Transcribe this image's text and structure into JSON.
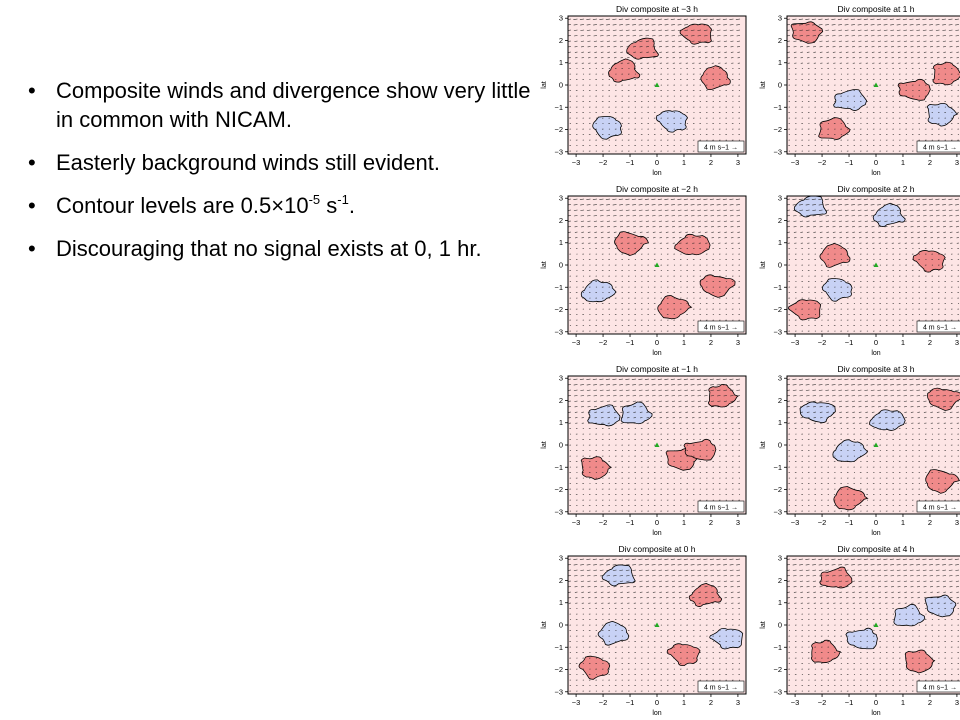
{
  "bullets": [
    {
      "text": "Composite winds and divergence show very little in common with NICAM."
    },
    {
      "text": "Easterly background winds still evident."
    },
    {
      "pre": "Contour levels are 0.5×10",
      "sup1": "-5",
      "mid": " s",
      "sup2": "-1",
      "post": "."
    },
    {
      "text": "Discouraging that no signal exists at 0, 1 hr."
    }
  ],
  "bullet_glyph": "•",
  "colors": {
    "positive_fill": "#f08a8a",
    "negative_fill": "#c8d2f5",
    "background": "#fde5e5",
    "marker": "#22aa22"
  },
  "chart_data": [
    {
      "type": "heatmap",
      "title": "Div composite at −3 h",
      "xlabel": "lon",
      "ylabel": "lat",
      "xticks": [
        "−3",
        "−2",
        "−1",
        "0",
        "1",
        "2",
        "3"
      ],
      "yticks": [
        "3",
        "2",
        "1",
        "0",
        "−1",
        "−2",
        "−3"
      ],
      "xlim": [
        -3.3,
        3.3
      ],
      "ylim": [
        -3.1,
        3.1
      ],
      "vector_key": "4 m s−1 →",
      "blobs": [
        {
          "x": -0.5,
          "y": 1.6,
          "s": "pos"
        },
        {
          "x": -1.2,
          "y": 0.6,
          "s": "pos"
        },
        {
          "x": 2.2,
          "y": 0.3,
          "s": "pos"
        },
        {
          "x": -1.8,
          "y": -1.9,
          "s": "neg"
        },
        {
          "x": 0.6,
          "y": -1.6,
          "s": "neg"
        },
        {
          "x": 1.5,
          "y": 2.3,
          "s": "pos"
        }
      ]
    },
    {
      "type": "heatmap",
      "title": "Div composite at 1 h",
      "xlabel": "lon",
      "ylabel": "lat",
      "xticks": [
        "−3",
        "−2",
        "−1",
        "0",
        "1",
        "2",
        "3"
      ],
      "yticks": [
        "3",
        "2",
        "1",
        "0",
        "−1",
        "−2",
        "−3"
      ],
      "xlim": [
        -3.3,
        3.3
      ],
      "ylim": [
        -3.1,
        3.1
      ],
      "vector_key": "4 m s−1 →",
      "blobs": [
        {
          "x": -1.0,
          "y": -0.7,
          "s": "neg"
        },
        {
          "x": -1.6,
          "y": -2.0,
          "s": "pos"
        },
        {
          "x": 2.6,
          "y": 0.5,
          "s": "pos"
        },
        {
          "x": 2.4,
          "y": -1.3,
          "s": "neg"
        },
        {
          "x": -2.6,
          "y": 2.4,
          "s": "pos"
        },
        {
          "x": 1.4,
          "y": -0.2,
          "s": "pos"
        }
      ]
    },
    {
      "type": "heatmap",
      "title": "Div composite at −2 h",
      "xlabel": "lon",
      "ylabel": "lat",
      "xticks": [
        "−3",
        "−2",
        "−1",
        "0",
        "1",
        "2",
        "3"
      ],
      "yticks": [
        "3",
        "2",
        "1",
        "0",
        "−1",
        "−2",
        "−3"
      ],
      "xlim": [
        -3.3,
        3.3
      ],
      "ylim": [
        -3.1,
        3.1
      ],
      "vector_key": "4 m s−1 →",
      "blobs": [
        {
          "x": 1.3,
          "y": 0.9,
          "s": "pos"
        },
        {
          "x": -2.2,
          "y": -1.2,
          "s": "neg"
        },
        {
          "x": 0.6,
          "y": -1.9,
          "s": "pos"
        },
        {
          "x": -1.0,
          "y": 1.0,
          "s": "pos"
        },
        {
          "x": 2.2,
          "y": -0.9,
          "s": "pos"
        }
      ]
    },
    {
      "type": "heatmap",
      "title": "Div composite at 2 h",
      "xlabel": "lon",
      "ylabel": "lat",
      "xticks": [
        "−3",
        "−2",
        "−1",
        "0",
        "1",
        "2",
        "3"
      ],
      "yticks": [
        "3",
        "2",
        "1",
        "0",
        "−1",
        "−2",
        "−3"
      ],
      "xlim": [
        -3.3,
        3.3
      ],
      "ylim": [
        -3.1,
        3.1
      ],
      "vector_key": "4 m s−1 →",
      "blobs": [
        {
          "x": -2.4,
          "y": 2.6,
          "s": "neg"
        },
        {
          "x": 0.5,
          "y": 2.2,
          "s": "neg"
        },
        {
          "x": -1.5,
          "y": 0.4,
          "s": "pos"
        },
        {
          "x": -1.4,
          "y": -1.1,
          "s": "neg"
        },
        {
          "x": 2.0,
          "y": 0.2,
          "s": "pos"
        },
        {
          "x": -2.6,
          "y": -2.0,
          "s": "pos"
        }
      ]
    },
    {
      "type": "heatmap",
      "title": "Div composite at −1 h",
      "xlabel": "lon",
      "ylabel": "lat",
      "xticks": [
        "−3",
        "−2",
        "−1",
        "0",
        "1",
        "2",
        "3"
      ],
      "yticks": [
        "3",
        "2",
        "1",
        "0",
        "−1",
        "−2",
        "−3"
      ],
      "xlim": [
        -3.3,
        3.3
      ],
      "ylim": [
        -3.1,
        3.1
      ],
      "vector_key": "4 m s−1 →",
      "blobs": [
        {
          "x": -2.0,
          "y": 1.3,
          "s": "neg"
        },
        {
          "x": -0.8,
          "y": 1.4,
          "s": "neg"
        },
        {
          "x": 2.4,
          "y": 2.2,
          "s": "pos"
        },
        {
          "x": -2.3,
          "y": -1.0,
          "s": "pos"
        },
        {
          "x": 0.9,
          "y": -0.6,
          "s": "pos"
        },
        {
          "x": 1.6,
          "y": -0.2,
          "s": "pos"
        }
      ]
    },
    {
      "type": "heatmap",
      "title": "Div composite at 3 h",
      "xlabel": "lon",
      "ylabel": "lat",
      "xticks": [
        "−3",
        "−2",
        "−1",
        "0",
        "1",
        "2",
        "3"
      ],
      "yticks": [
        "3",
        "2",
        "1",
        "0",
        "−1",
        "−2",
        "−3"
      ],
      "xlim": [
        -3.3,
        3.3
      ],
      "ylim": [
        -3.1,
        3.1
      ],
      "vector_key": "4 m s−1 →",
      "blobs": [
        {
          "x": 0.4,
          "y": 1.1,
          "s": "neg"
        },
        {
          "x": -1.0,
          "y": -0.3,
          "s": "neg"
        },
        {
          "x": -1.0,
          "y": -2.4,
          "s": "pos"
        },
        {
          "x": 2.4,
          "y": -1.6,
          "s": "pos"
        },
        {
          "x": 2.5,
          "y": 2.1,
          "s": "pos"
        },
        {
          "x": -2.2,
          "y": 1.5,
          "s": "neg"
        }
      ]
    },
    {
      "type": "heatmap",
      "title": "Div composite at 0 h",
      "xlabel": "lon",
      "ylabel": "lat",
      "xticks": [
        "−3",
        "−2",
        "−1",
        "0",
        "1",
        "2",
        "3"
      ],
      "yticks": [
        "3",
        "2",
        "1",
        "0",
        "−1",
        "−2",
        "−3"
      ],
      "xlim": [
        -3.3,
        3.3
      ],
      "ylim": [
        -3.1,
        3.1
      ],
      "vector_key": "4 m s−1 →",
      "blobs": [
        {
          "x": -1.4,
          "y": 2.2,
          "s": "neg"
        },
        {
          "x": 1.8,
          "y": 1.3,
          "s": "pos"
        },
        {
          "x": -1.6,
          "y": -0.4,
          "s": "neg"
        },
        {
          "x": -2.3,
          "y": -1.9,
          "s": "pos"
        },
        {
          "x": 1.0,
          "y": -1.3,
          "s": "pos"
        },
        {
          "x": 2.6,
          "y": -0.6,
          "s": "neg"
        }
      ]
    },
    {
      "type": "heatmap",
      "title": "Div composite at 4 h",
      "xlabel": "lon",
      "ylabel": "lat",
      "xticks": [
        "−3",
        "−2",
        "−1",
        "0",
        "1",
        "2",
        "3"
      ],
      "yticks": [
        "3",
        "2",
        "1",
        "0",
        "−1",
        "−2",
        "−3"
      ],
      "xlim": [
        -3.3,
        3.3
      ],
      "ylim": [
        -3.1,
        3.1
      ],
      "vector_key": "4 m s−1 →",
      "blobs": [
        {
          "x": -1.5,
          "y": 2.1,
          "s": "pos"
        },
        {
          "x": 1.2,
          "y": 0.4,
          "s": "neg"
        },
        {
          "x": -1.9,
          "y": -1.2,
          "s": "pos"
        },
        {
          "x": 1.6,
          "y": -1.6,
          "s": "pos"
        },
        {
          "x": 2.4,
          "y": 0.9,
          "s": "neg"
        },
        {
          "x": -0.5,
          "y": -0.6,
          "s": "neg"
        }
      ]
    }
  ]
}
